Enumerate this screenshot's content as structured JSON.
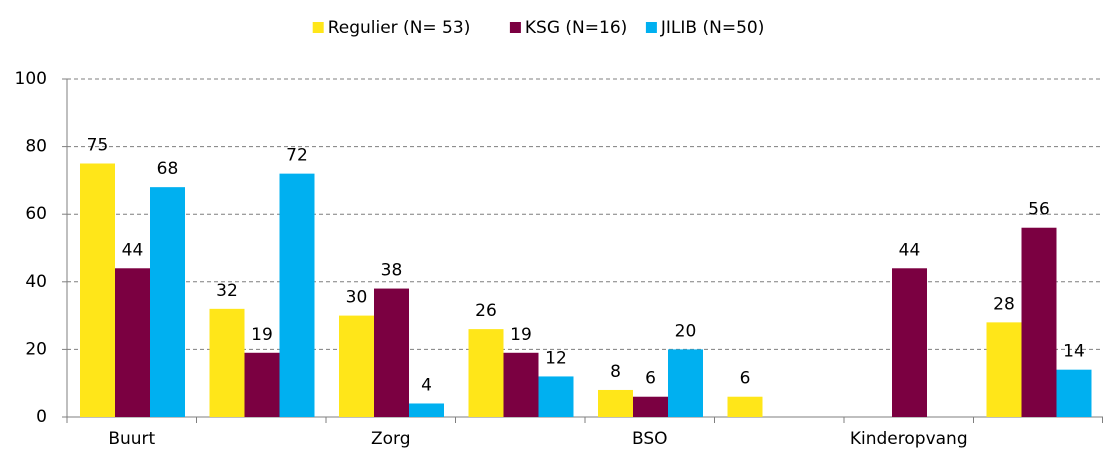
{
  "chart_data": {
    "type": "bar",
    "categories": [
      "Buurt",
      null,
      "Zorg",
      null,
      "BSO",
      null,
      "Kinderopvang",
      null
    ],
    "series": [
      {
        "name": "Regulier (N= 53)",
        "color": "#ffe619",
        "values": [
          75,
          32,
          30,
          26,
          8,
          6,
          null,
          28
        ]
      },
      {
        "name": "KSG (N=16)",
        "color": "#7b0041",
        "values": [
          44,
          19,
          38,
          19,
          6,
          null,
          44,
          56
        ]
      },
      {
        "name": "JILIB (N=50)",
        "color": "#00b0f0",
        "values": [
          68,
          72,
          4,
          12,
          20,
          null,
          null,
          14
        ]
      }
    ],
    "ylim": [
      0,
      100
    ],
    "yticks": [
      0,
      20,
      40,
      60,
      80,
      100
    ],
    "grid": true,
    "legend": "top"
  }
}
